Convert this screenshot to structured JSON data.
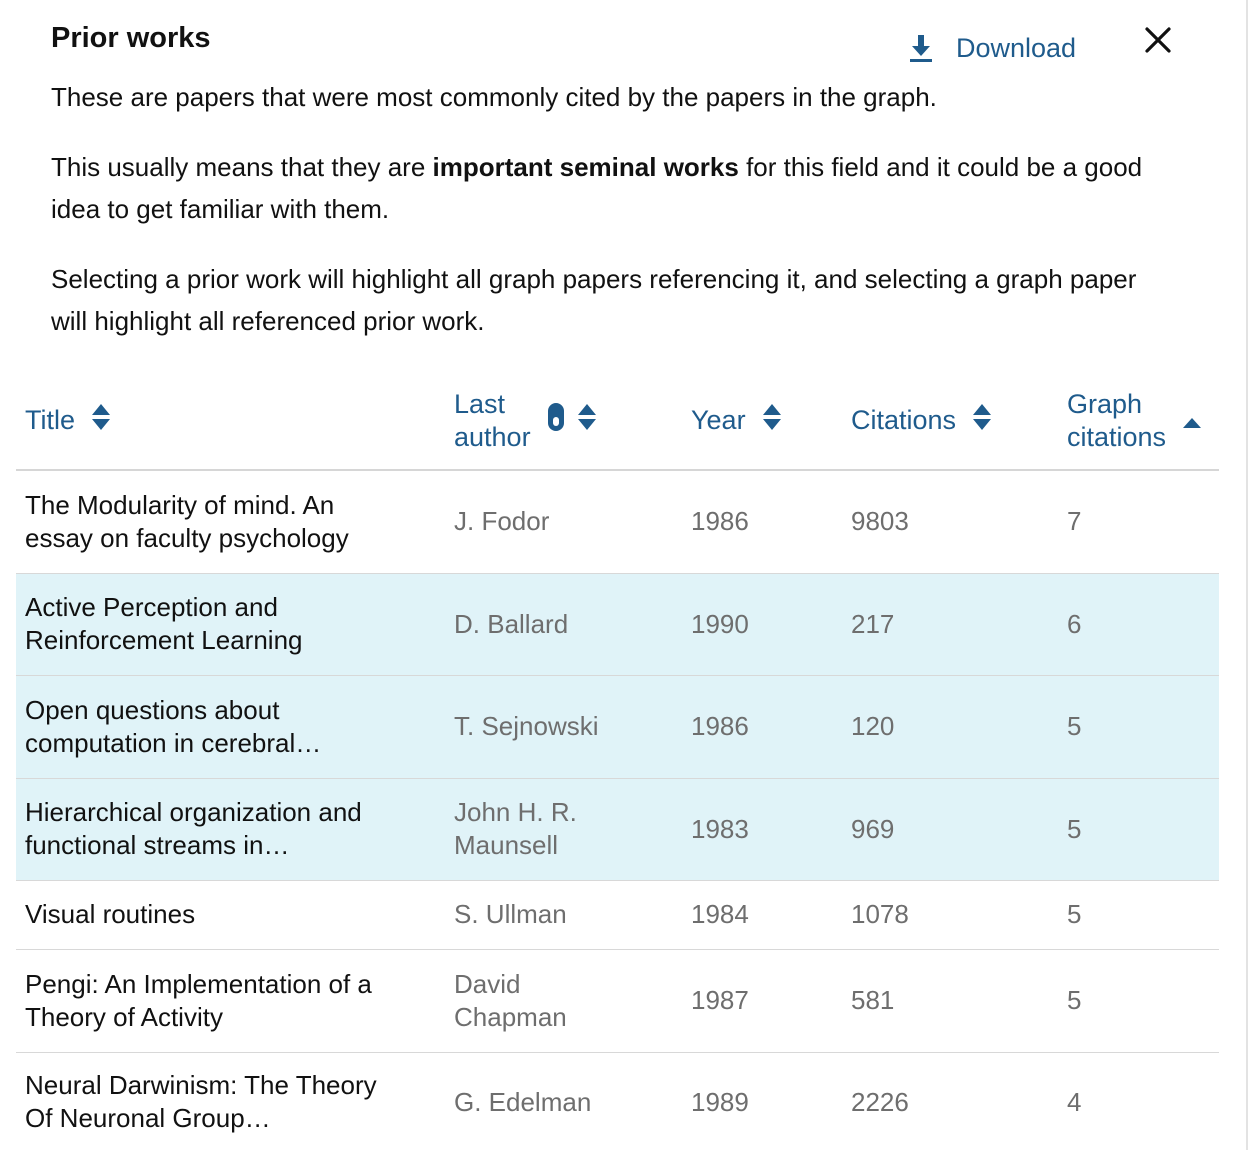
{
  "panel": {
    "title": "Prior works",
    "download_label": "Download",
    "intro": {
      "p1": "These are papers that were most commonly cited by the papers in the graph.",
      "p2_before": "This usually means that they are ",
      "p2_bold": "important seminal works",
      "p2_after": " for this field and it could be a good idea to get familiar with them.",
      "p3": "Selecting a prior work will highlight all graph papers referencing it, and selecting a graph paper will highlight all referenced prior work."
    }
  },
  "table": {
    "headers": {
      "title": "Title",
      "last_author_line1": "Last",
      "last_author_line2": "author",
      "year": "Year",
      "citations": "Citations",
      "graph_citations_line1": "Graph",
      "graph_citations_line2": "citations"
    },
    "rows": [
      {
        "title": "The Modularity of mind. An essay on faculty psychology",
        "author": "J. Fodor",
        "year": "1986",
        "citations": "9803",
        "graph_citations": "7",
        "highlighted": false
      },
      {
        "title": "Active Perception and Reinforcement Learning",
        "author": "D. Ballard",
        "year": "1990",
        "citations": "217",
        "graph_citations": "6",
        "highlighted": true
      },
      {
        "title": "Open questions about computation in cerebral…",
        "author": "T. Sejnowski",
        "year": "1986",
        "citations": "120",
        "graph_citations": "5",
        "highlighted": true
      },
      {
        "title": "Hierarchical organization and functional streams in…",
        "author": "John H. R. Maunsell",
        "year": "1983",
        "citations": "969",
        "graph_citations": "5",
        "highlighted": true
      },
      {
        "title": "Visual routines",
        "author": "S. Ullman",
        "year": "1984",
        "citations": "1078",
        "graph_citations": "5",
        "highlighted": false
      },
      {
        "title": "Pengi: An Implementation of a Theory of Activity",
        "author": "David Chapman",
        "year": "1987",
        "citations": "581",
        "graph_citations": "5",
        "highlighted": false
      },
      {
        "title": "Neural Darwinism: The Theory Of Neuronal Group…",
        "author": "G. Edelman",
        "year": "1989",
        "citations": "2226",
        "graph_citations": "4",
        "highlighted": false
      }
    ]
  },
  "colors": {
    "accent": "#1f5b8c",
    "highlight_row": "#e0f3f8",
    "muted_text": "#6e6e6e"
  },
  "icons": {
    "download": "download-icon",
    "close": "close-icon",
    "sort": "sort-both-icon",
    "sort_asc": "sort-ascending-icon",
    "mouse": "mouse-icon"
  }
}
